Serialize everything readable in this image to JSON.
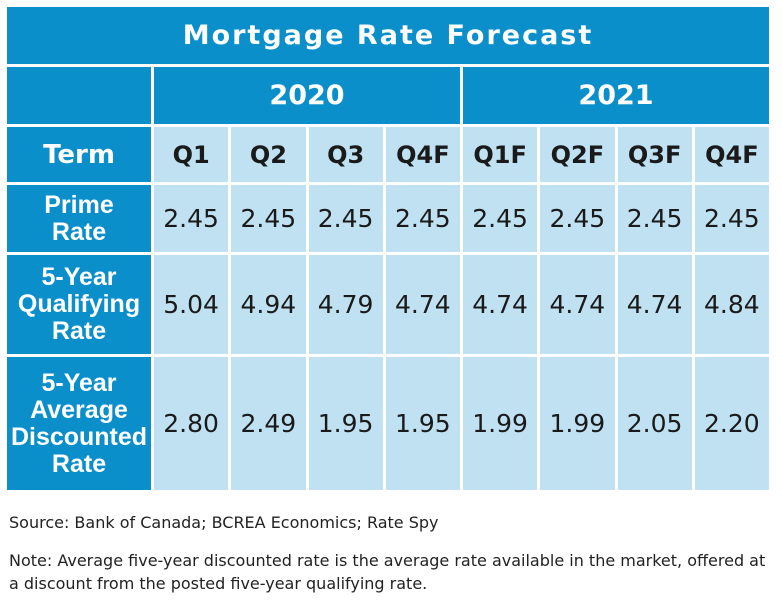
{
  "chart_data": {
    "type": "table",
    "title": "Mortgage Rate Forecast",
    "years": [
      {
        "label": "2020",
        "span": 4
      },
      {
        "label": "2021",
        "span": 4
      }
    ],
    "term_label": "Term",
    "columns": [
      "Q1",
      "Q2",
      "Q3",
      "Q4F",
      "Q1F",
      "Q2F",
      "Q3F",
      "Q4F"
    ],
    "rows": [
      {
        "label_lines": [
          "Prime",
          "Rate"
        ],
        "values": [
          "2.45",
          "2.45",
          "2.45",
          "2.45",
          "2.45",
          "2.45",
          "2.45",
          "2.45"
        ]
      },
      {
        "label_lines": [
          "5-Year",
          "Qualifying",
          "Rate"
        ],
        "values": [
          "5.04",
          "4.94",
          "4.79",
          "4.74",
          "4.74",
          "4.74",
          "4.74",
          "4.84"
        ]
      },
      {
        "label_lines": [
          "5-Year",
          "Average",
          "Discounted",
          "Rate"
        ],
        "values": [
          "2.80",
          "2.49",
          "1.95",
          "1.95",
          "1.99",
          "1.99",
          "2.05",
          "2.20"
        ]
      }
    ]
  },
  "source": "Source: Bank of Canada; BCREA Economics; Rate Spy",
  "note": "Note: Average five-year discounted rate is the average rate available in the market, offered at a discount from the posted five-year qualifying rate."
}
